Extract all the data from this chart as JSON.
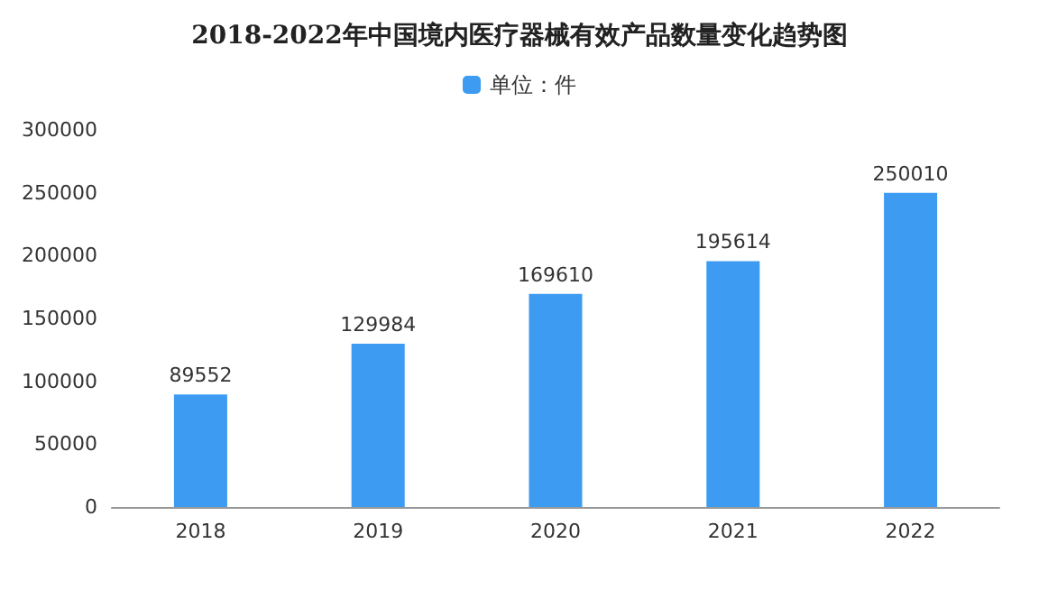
{
  "chart_data": {
    "type": "bar",
    "title": "2018-2022年中国境内医疗器械有效产品数量变化趋势图",
    "categories": [
      "2018",
      "2019",
      "2020",
      "2021",
      "2022"
    ],
    "series": [
      {
        "name": "单位：件",
        "color": "#3d9cf2",
        "values": [
          89552,
          129984,
          169610,
          195614,
          250010
        ]
      }
    ],
    "ylim": [
      0,
      300000
    ],
    "yticks": [
      0,
      50000,
      100000,
      150000,
      200000,
      250000,
      300000
    ],
    "data_labels": true,
    "legend": "top",
    "grid": false
  }
}
